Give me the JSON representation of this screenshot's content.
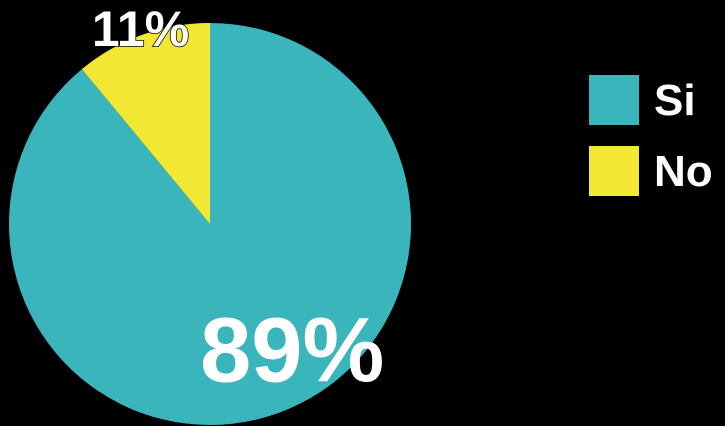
{
  "chart_data": {
    "type": "pie",
    "categories": [
      "Si",
      "No"
    ],
    "values": [
      89,
      11
    ],
    "labels": [
      "89%",
      "11%"
    ],
    "colors": [
      "#3ab5bc",
      "#f2e833"
    ],
    "legend": {
      "placement": "right",
      "entries": [
        "Si",
        "No"
      ]
    }
  },
  "colors": {
    "background": "#000000",
    "text": "#ffffff"
  }
}
